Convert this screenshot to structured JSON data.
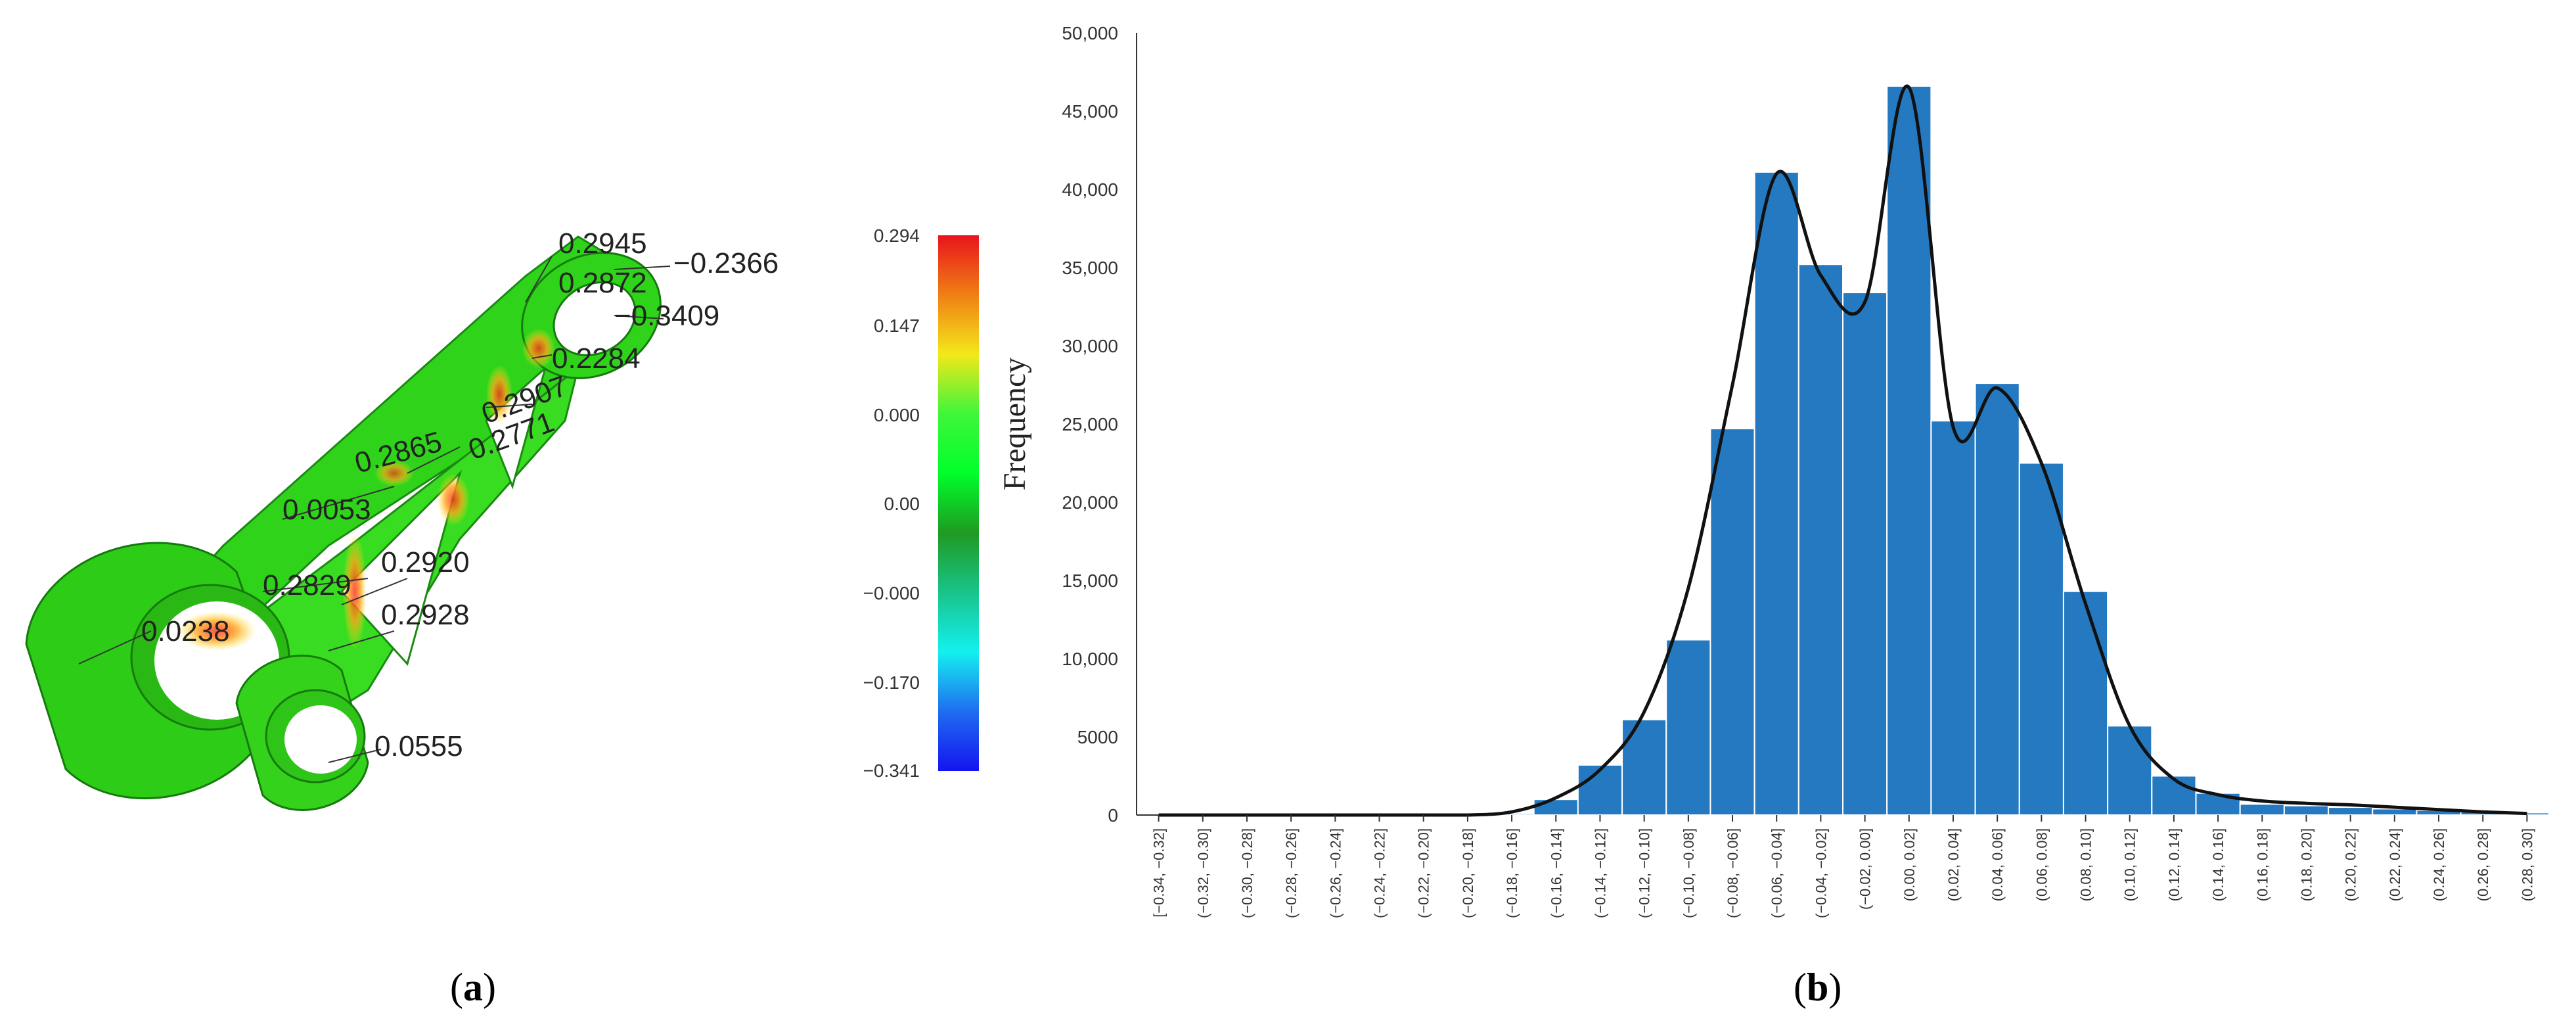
{
  "panel_a": {
    "caption": "a",
    "annotations": [
      "0.2945",
      "0.2872",
      "−0.2366",
      "−0.3409",
      "0.2284",
      "0.2907",
      "0.2771",
      "0.2865",
      "0.0053",
      "0.2829",
      "0.2920",
      "0.2928",
      "0.0238",
      "0.0555"
    ],
    "colorbar": {
      "labels": [
        "0.294",
        "0.147",
        "0.000",
        "0.00",
        "−0.000",
        "−0.170",
        "−0.341"
      ],
      "colors": [
        "#e8141c",
        "#f07f14",
        "#f3e81a",
        "#3ff63a",
        "#00ff2a",
        "#1f9a22",
        "#19c48a",
        "#14f0f0",
        "#1f6df0",
        "#1414f0"
      ]
    }
  },
  "panel_b": {
    "caption": "b",
    "colors": {
      "bar": "#2579c0",
      "bar_edge": "#ffffff",
      "curve": "#111111",
      "axis": "#333333"
    }
  },
  "chart_data": {
    "type": "bar",
    "title": "",
    "xlabel": "",
    "ylabel": "Frequency",
    "ylim": [
      0,
      50000
    ],
    "yticks": [
      0,
      5000,
      10000,
      15000,
      20000,
      25000,
      30000,
      35000,
      40000,
      45000,
      50000
    ],
    "ytick_labels": [
      "0",
      "5000",
      "10,000",
      "15,000",
      "20,000",
      "25,000",
      "30,000",
      "35,000",
      "40,000",
      "45,000",
      "50,000"
    ],
    "categories": [
      "[−0.34, −0.32]",
      "(−0.32, −0.30]",
      "(−0.30, −0.28]",
      "(−0.28, −0.26]",
      "(−0.26, −0.24]",
      "(−0.24, −0.22]",
      "(−0.22, −0.20]",
      "(−0.20, −0.18]",
      "(−0.18, −0.16]",
      "(−0.16, −0.14]",
      "(−0.14, −0.12]",
      "(−0.12, −0.10]",
      "(−0.10, −0.08]",
      "(−0.08, −0.06]",
      "(−0.06, −0.04]",
      "(−0.04, −0.02]",
      "(−0.02, 0.00]",
      "(0.00, 0.02]",
      "(0.02, 0.04]",
      "(0.04, 0.06]",
      "(0.06, 0.08]",
      "(0.08, 0.10]",
      "(0.10, 0.12]",
      "(0.12, 0.14]",
      "(0.14, 0.16]",
      "(0.16, 0.18]",
      "(0.18, 0.20]",
      "(0.20, 0.22]",
      "(0.22, 0.24]",
      "(0.24, 0.26]",
      "(0.26, 0.28]",
      "(0.28, 0.30]"
    ],
    "values": [
      0,
      0,
      0,
      0,
      0,
      0,
      0,
      0,
      100,
      1000,
      3200,
      6100,
      11200,
      24700,
      41100,
      35200,
      33400,
      46600,
      25200,
      27600,
      22500,
      14300,
      5700,
      2500,
      1400,
      700,
      600,
      500,
      400,
      300,
      200,
      150
    ],
    "curve": [
      0,
      0,
      0,
      0,
      0,
      0,
      0,
      0,
      200,
      1100,
      2900,
      6600,
      14500,
      27500,
      41000,
      34500,
      32800,
      46500,
      24800,
      27300,
      22500,
      13500,
      5700,
      2300,
      1300,
      900,
      750,
      650,
      500,
      350,
      200,
      100
    ]
  }
}
